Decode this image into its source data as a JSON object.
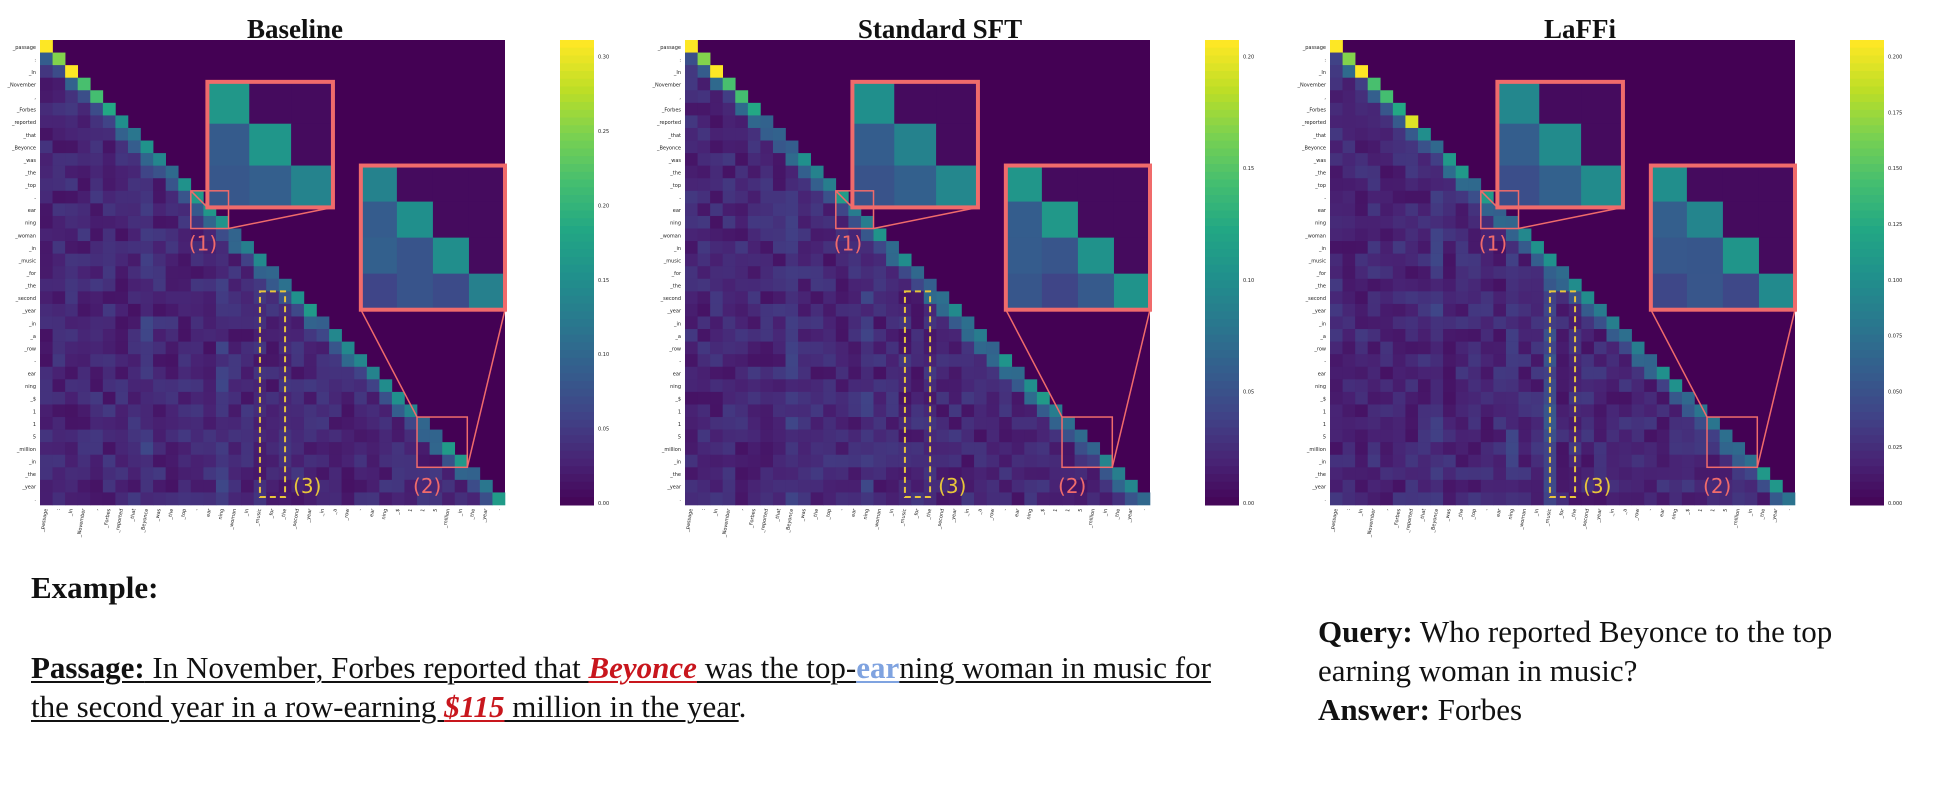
{
  "figure": {
    "panels": [
      {
        "title": "Baseline",
        "cbar_ticks": [
          "0.00",
          "0.05",
          "0.10",
          "0.15",
          "0.20",
          "0.25",
          "0.30"
        ]
      },
      {
        "title": "Standard SFT",
        "cbar_ticks": [
          "0.00",
          "0.05",
          "0.10",
          "0.15",
          "0.20"
        ]
      },
      {
        "title": "LaFFi",
        "cbar_ticks": [
          "0.000",
          "0.025",
          "0.050",
          "0.075",
          "0.100",
          "0.125",
          "0.150",
          "0.175",
          "0.200"
        ]
      }
    ],
    "annotations": {
      "label1": "(1)",
      "label2": "(2)",
      "label3": "(3)"
    }
  },
  "chart_data": {
    "type": "heatmap",
    "description_source": "attention maps over passage tokens",
    "panels": [
      "Baseline",
      "Standard SFT",
      "LaFFi"
    ],
    "tokens": [
      "_passage",
      ":",
      "_In",
      "_November",
      ",",
      "_Forbes",
      "_reported",
      "_that",
      "_Beyonce",
      "_was",
      "_the",
      "_top",
      "-",
      "ear",
      "ning",
      "_woman",
      "_in",
      "_music",
      "_for",
      "_the",
      "_second",
      "_year",
      "_in",
      "_a",
      "_row",
      "-",
      "ear",
      "ning",
      "_$",
      "1",
      "1",
      "5",
      "_million",
      "_in",
      "_the",
      "_year",
      "."
    ],
    "colormap": "viridis",
    "colors": {
      "viridis_low": "#440154",
      "viridis_mid": "#21918c",
      "viridis_high": "#fde725",
      "zoom_box": "#f06b6b",
      "dashed_box": "#e8c53a"
    }
  },
  "text": {
    "example_label": "Example:",
    "passage_label": "Passage:",
    "passage_p1": " In November, Forbes reported that ",
    "passage_beyonce": "Beyonce",
    "passage_p2": " was the top-",
    "passage_ear": "ear",
    "passage_p3": "ning woman in music for the second year in a row-earning ",
    "passage_money": "$115",
    "passage_p4": " million in the year",
    "passage_end": ".",
    "query_label": "Query:",
    "query_text": " Who reported Beyonce to the top earning woman in music?",
    "answer_label": "Answer:",
    "answer_text": " Forbes"
  }
}
